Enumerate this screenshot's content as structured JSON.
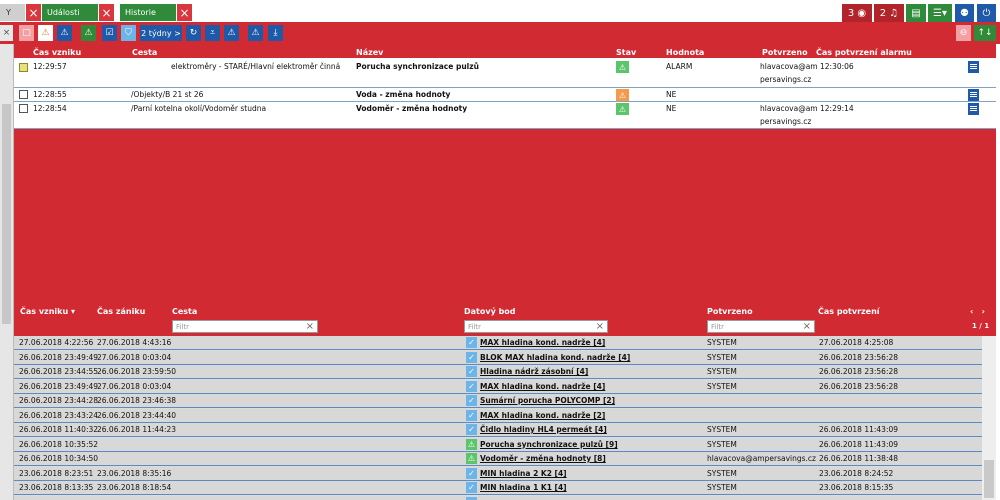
{
  "tabs": [
    {
      "label": "Y",
      "style": "gray"
    },
    {
      "label": "Události",
      "style": "green"
    },
    {
      "label": "Historie",
      "style": "green"
    }
  ],
  "top_buttons": {
    "alarms_count": "3",
    "alarms_icon": "target-icon",
    "notifications_count": "2",
    "notifications_icon": "bell-icon",
    "book_icon": "book-icon",
    "list_icon": "list-icon",
    "user_icon": "user-icon",
    "power_icon": "power-icon"
  },
  "toolbar": {
    "period_label": "2 týdny >"
  },
  "upper_table": {
    "headers": {
      "time": "Čas vzniku",
      "path": "Cesta",
      "name": "Název",
      "state": "Stav",
      "value": "Hodnota",
      "confirmed": "Potvrzeno",
      "confirm_time": "Čas potvrzení alarmu"
    },
    "rows": [
      {
        "time": "12:29:57",
        "path": "elektroměry - STARÉ/Hlavní elektroměr činná",
        "name": "Porucha synchronizace pulzů",
        "state": "green",
        "value": "ALARM",
        "confirmed_line1": "hlavacova@am 12:30:06",
        "confirmed_line2": "persavings.cz"
      },
      {
        "time": "12:28:55",
        "path": "/Objekty/B 21 st 26",
        "name": "Voda - změna hodnoty",
        "state": "orange",
        "value": "NE",
        "confirmed_line1": "",
        "confirmed_line2": ""
      },
      {
        "time": "12:28:54",
        "path": "/Parní kotelna okolí/Vodoměr studna",
        "name": "Vodoměr - změna hodnoty",
        "state": "green",
        "value": "NE",
        "confirmed_line1": "hlavacova@am 12:29:14",
        "confirmed_line2": "persavings.cz"
      }
    ]
  },
  "lower_table": {
    "headers": {
      "created": "Čas vzniku",
      "ended": "Čas zániku",
      "path": "Cesta",
      "datapoint": "Datový bod",
      "confirmed": "Potvrzeno",
      "confirm_time": "Čas potvrzení"
    },
    "filter_placeholder": "Filtr",
    "pager": "1 / 1",
    "rows": [
      {
        "created": "27.06.2018 4:22:56",
        "ended": "27.06.2018 4:43:16",
        "icon": "check",
        "datapoint": "MAX hladina kond. nadrže [4]",
        "confirmed": "SYSTEM",
        "confirm_time": "27.06.2018 4:25:08"
      },
      {
        "created": "26.06.2018 23:49:49",
        "ended": "27.06.2018 0:03:04",
        "icon": "check",
        "datapoint": "BLOK MAX hladina kond. nadrže [4]",
        "confirmed": "SYSTEM",
        "confirm_time": "26.06.2018 23:56:28"
      },
      {
        "created": "26.06.2018 23:44:55",
        "ended": "26.06.2018 23:59:50",
        "icon": "check",
        "datapoint": "Hladina nádrž zásobní [4]",
        "confirmed": "SYSTEM",
        "confirm_time": "26.06.2018 23:56:28"
      },
      {
        "created": "26.06.2018 23:49:49",
        "ended": "27.06.2018 0:03:04",
        "icon": "check",
        "datapoint": "MAX hladina kond. nadrže [4]",
        "confirmed": "SYSTEM",
        "confirm_time": "26.06.2018 23:56:28"
      },
      {
        "created": "26.06.2018 23:44:28",
        "ended": "26.06.2018 23:46:38",
        "icon": "check",
        "datapoint": "Sumární porucha POLYCOMP [2]",
        "confirmed": "",
        "confirm_time": ""
      },
      {
        "created": "26.06.2018 23:43:24",
        "ended": "26.06.2018 23:44:40",
        "icon": "check",
        "datapoint": "MAX hladina kond. nadrže [2]",
        "confirmed": "",
        "confirm_time": ""
      },
      {
        "created": "26.06.2018 11:40:32",
        "ended": "26.06.2018 11:44:23",
        "icon": "check",
        "datapoint": "Čidlo hladiny HL4 permeát [4]",
        "confirmed": "SYSTEM",
        "confirm_time": "26.06.2018 11:43:09"
      },
      {
        "created": "26.06.2018 10:35:52",
        "ended": "",
        "icon": "triangle",
        "datapoint": "Porucha synchronizace pulzů [9]",
        "confirmed": "SYSTEM",
        "confirm_time": "26.06.2018 11:43:09"
      },
      {
        "created": "26.06.2018 10:34:50",
        "ended": "",
        "icon": "triangle",
        "datapoint": "Vodoměr - změna hodnoty [8]",
        "confirmed": "hlavacova@ampersavings.cz",
        "confirm_time": "26.06.2018 11:38:48"
      },
      {
        "created": "23.06.2018 8:23:51",
        "ended": "23.06.2018 8:35:16",
        "icon": "check",
        "datapoint": "MIN hladina 2 K2 [4]",
        "confirmed": "SYSTEM",
        "confirm_time": "23.06.2018 8:24:52"
      },
      {
        "created": "23.06.2018 8:13:35",
        "ended": "23.06.2018 8:18:54",
        "icon": "check",
        "datapoint": "MIN hladina 1 K1 [4]",
        "confirmed": "SYSTEM",
        "confirm_time": "23.06.2018 8:15:35"
      },
      {
        "created": "",
        "ended": "",
        "icon": "check",
        "datapoint": "",
        "confirmed": "",
        "confirm_time": ""
      }
    ]
  },
  "colors": {
    "primary_red": "#d12a33",
    "dark_red": "#b0242a",
    "green": "#2f8a3a",
    "blue": "#1e5aa8",
    "state_green": "#5cc46b",
    "state_orange": "#f39a4b"
  }
}
